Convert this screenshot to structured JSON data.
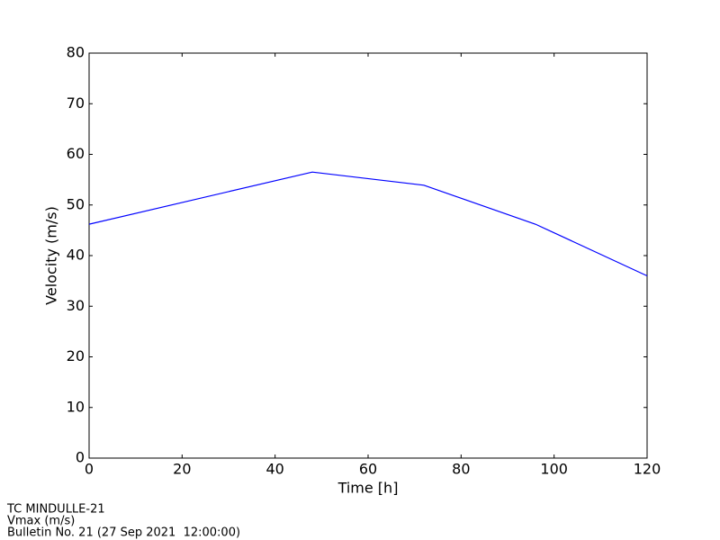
{
  "chart_data": {
    "type": "line",
    "xlabel": "Time [h]",
    "ylabel": "Velocity (m/s)",
    "x": [
      0,
      48,
      72,
      96,
      120
    ],
    "values": [
      46.2,
      56.5,
      53.9,
      46.2,
      36
    ],
    "color": "#0000ff",
    "xlim": [
      0,
      120
    ],
    "xticks": [
      0,
      20,
      40,
      60,
      80,
      100,
      120
    ],
    "ylim": [
      0,
      80
    ],
    "yticks": [
      0,
      10,
      20,
      30,
      40,
      50,
      60,
      70,
      80
    ],
    "grid": false,
    "footer": [
      "TC MINDULLE-21",
      "Vmax (m/s)",
      "Bulletin No. 21 (27 Sep 2021  12:00:00)"
    ]
  }
}
